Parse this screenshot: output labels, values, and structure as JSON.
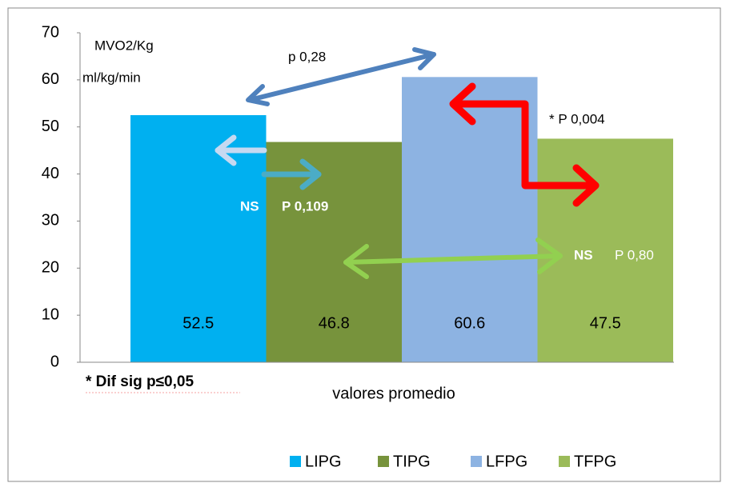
{
  "chart_data": {
    "type": "bar",
    "categories": [
      "valores promedio"
    ],
    "series": [
      {
        "name": "LIPG",
        "color": "#00b0f0",
        "values": [
          52.5
        ]
      },
      {
        "name": "TIPG",
        "color": "#77933c",
        "values": [
          46.8
        ]
      },
      {
        "name": "LFPG",
        "color": "#8db3e2",
        "values": [
          60.6
        ]
      },
      {
        "name": "TFPG",
        "color": "#9bbb59",
        "values": [
          47.5
        ]
      }
    ],
    "ylim": [
      0,
      70
    ],
    "yticks": [
      0,
      10,
      20,
      30,
      40,
      50,
      60,
      70
    ],
    "grid": false,
    "legend": "bottom",
    "annotations": [
      "MVO2/Kg",
      "ml/kg/min",
      "p  0,28",
      "* P  0,004",
      "NS",
      "P 0,109",
      "NS",
      "P 0,80",
      "* Dif sig p≤0,05"
    ]
  }
}
